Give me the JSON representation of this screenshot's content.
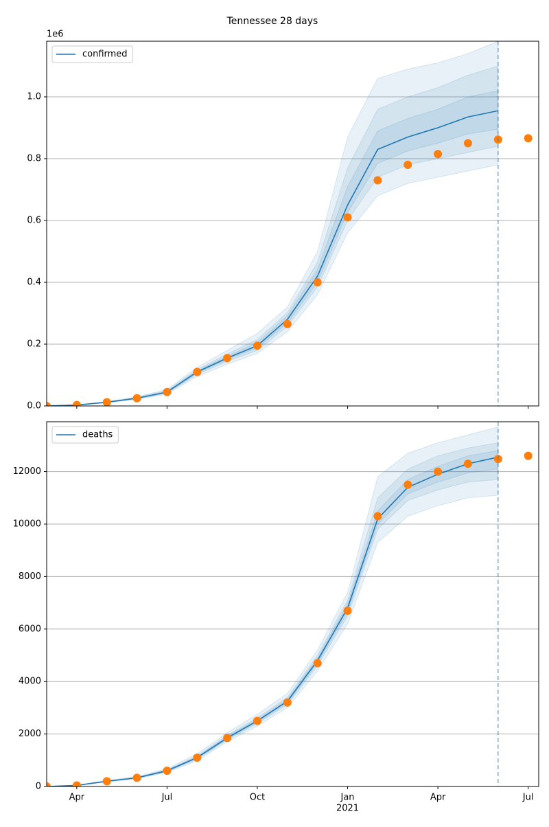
{
  "title": "Tennessee 28 days",
  "chart_data": [
    {
      "type": "line",
      "x": [
        "2020-03",
        "2020-04",
        "2020-05",
        "2020-06",
        "2020-07",
        "2020-08",
        "2020-09",
        "2020-10",
        "2020-11",
        "2020-12",
        "2021-01",
        "2021-02",
        "2021-03",
        "2021-04",
        "2021-05",
        "2021-06",
        "2021-07"
      ],
      "xlim": [
        "2020-03",
        "2021-07"
      ],
      "ylim": [
        0,
        1180000
      ],
      "yticks": [
        {
          "value": 0,
          "label": "0.0"
        },
        {
          "value": 200000,
          "label": "0.2"
        },
        {
          "value": 400000,
          "label": "0.4"
        },
        {
          "value": 600000,
          "label": "0.6"
        },
        {
          "value": 800000,
          "label": "0.8"
        },
        {
          "value": 1000000,
          "label": "1.0"
        }
      ],
      "y_offset_label": "1e6",
      "grid": true,
      "legend": "upper left",
      "vline": "2021-06",
      "series": [
        {
          "name": "confirmed",
          "color": "#1f77b4",
          "values": [
            0,
            3000,
            12000,
            25000,
            45000,
            110000,
            155000,
            195000,
            280000,
            420000,
            650000,
            830000,
            870000,
            900000,
            935000,
            955000,
            null
          ]
        },
        {
          "color": "#ff7f0e",
          "marker": "o",
          "values": [
            0,
            3000,
            12000,
            25000,
            45000,
            110000,
            155000,
            195000,
            265000,
            400000,
            610000,
            730000,
            780000,
            815000,
            850000,
            862000,
            866000
          ]
        }
      ],
      "bands": [
        {
          "color": "#1f77b4",
          "opacity": 0.1,
          "lower": [
            0,
            2000,
            10000,
            21000,
            38000,
            95000,
            135000,
            170000,
            240000,
            360000,
            560000,
            680000,
            720000,
            740000,
            760000,
            780000,
            null
          ],
          "upper": [
            0,
            4000,
            14000,
            30000,
            54000,
            125000,
            180000,
            235000,
            320000,
            500000,
            870000,
            1060000,
            1090000,
            1110000,
            1140000,
            1180000,
            null
          ]
        },
        {
          "color": "#1f77b4",
          "opacity": 0.1,
          "lower": [
            0,
            2500,
            11000,
            23000,
            41000,
            102000,
            144000,
            180000,
            258000,
            385000,
            600000,
            740000,
            780000,
            800000,
            820000,
            840000,
            null
          ],
          "upper": [
            0,
            3500,
            13000,
            27500,
            50000,
            118000,
            168000,
            215000,
            302000,
            465000,
            770000,
            960000,
            1000000,
            1030000,
            1070000,
            1100000,
            null
          ]
        },
        {
          "color": "#1f77b4",
          "opacity": 0.1,
          "lower": [
            0,
            2800,
            11500,
            24000,
            43000,
            106000,
            150000,
            188000,
            268000,
            400000,
            625000,
            785000,
            825000,
            850000,
            880000,
            895000,
            null
          ],
          "upper": [
            0,
            3200,
            12500,
            26000,
            47000,
            114000,
            161000,
            205000,
            292000,
            442000,
            710000,
            890000,
            930000,
            960000,
            1000000,
            1020000,
            null
          ]
        }
      ]
    },
    {
      "type": "line",
      "x": [
        "2020-03",
        "2020-04",
        "2020-05",
        "2020-06",
        "2020-07",
        "2020-08",
        "2020-09",
        "2020-10",
        "2020-11",
        "2020-12",
        "2021-01",
        "2021-02",
        "2021-03",
        "2021-04",
        "2021-05",
        "2021-06",
        "2021-07"
      ],
      "xlim": [
        "2020-03",
        "2021-07"
      ],
      "xticks": [
        {
          "value": "2020-04",
          "label": "Apr"
        },
        {
          "value": "2020-07",
          "label": "Jul"
        },
        {
          "value": "2020-10",
          "label": "Oct"
        },
        {
          "value": "2021-01",
          "label": "Jan"
        },
        {
          "value": "2021-04",
          "label": "Apr"
        },
        {
          "value": "2021-07",
          "label": "Jul"
        }
      ],
      "x_year_label": {
        "value": "2021-01",
        "label": "2021"
      },
      "ylim": [
        0,
        13900
      ],
      "yticks": [
        0,
        2000,
        4000,
        6000,
        8000,
        10000,
        12000
      ],
      "grid": true,
      "legend": "upper left",
      "vline": "2021-06",
      "series": [
        {
          "name": "deaths",
          "color": "#1f77b4",
          "values": [
            0,
            40,
            200,
            330,
            600,
            1100,
            1850,
            2500,
            3250,
            4800,
            6800,
            10200,
            11400,
            11900,
            12300,
            12550,
            null
          ]
        },
        {
          "color": "#ff7f0e",
          "marker": "o",
          "values": [
            0,
            40,
            200,
            330,
            600,
            1100,
            1850,
            2500,
            3200,
            4700,
            6700,
            10300,
            11500,
            12000,
            12300,
            12480,
            12600
          ]
        }
      ],
      "bands": [
        {
          "color": "#1f77b4",
          "opacity": 0.1,
          "lower": [
            0,
            30,
            170,
            290,
            530,
            980,
            1700,
            2300,
            3000,
            4400,
            6200,
            9300,
            10300,
            10700,
            11000,
            11100,
            null
          ],
          "upper": [
            0,
            50,
            230,
            380,
            680,
            1250,
            2050,
            2750,
            3550,
            5200,
            7400,
            11800,
            12700,
            13100,
            13400,
            13700,
            null
          ]
        },
        {
          "color": "#1f77b4",
          "opacity": 0.1,
          "lower": [
            0,
            35,
            185,
            310,
            565,
            1040,
            1770,
            2400,
            3120,
            4600,
            6500,
            9800,
            10900,
            11300,
            11600,
            11700,
            null
          ],
          "upper": [
            0,
            45,
            215,
            355,
            640,
            1170,
            1950,
            2620,
            3400,
            5000,
            7100,
            11000,
            12100,
            12600,
            12900,
            13100,
            null
          ]
        },
        {
          "color": "#1f77b4",
          "opacity": 0.1,
          "lower": [
            0,
            38,
            192,
            320,
            580,
            1070,
            1810,
            2450,
            3180,
            4700,
            6650,
            10000,
            11150,
            11600,
            11950,
            12100,
            null
          ],
          "upper": [
            0,
            42,
            208,
            340,
            620,
            1130,
            1900,
            2560,
            3320,
            4900,
            6950,
            10500,
            11700,
            12200,
            12600,
            12800,
            null
          ]
        }
      ]
    }
  ]
}
